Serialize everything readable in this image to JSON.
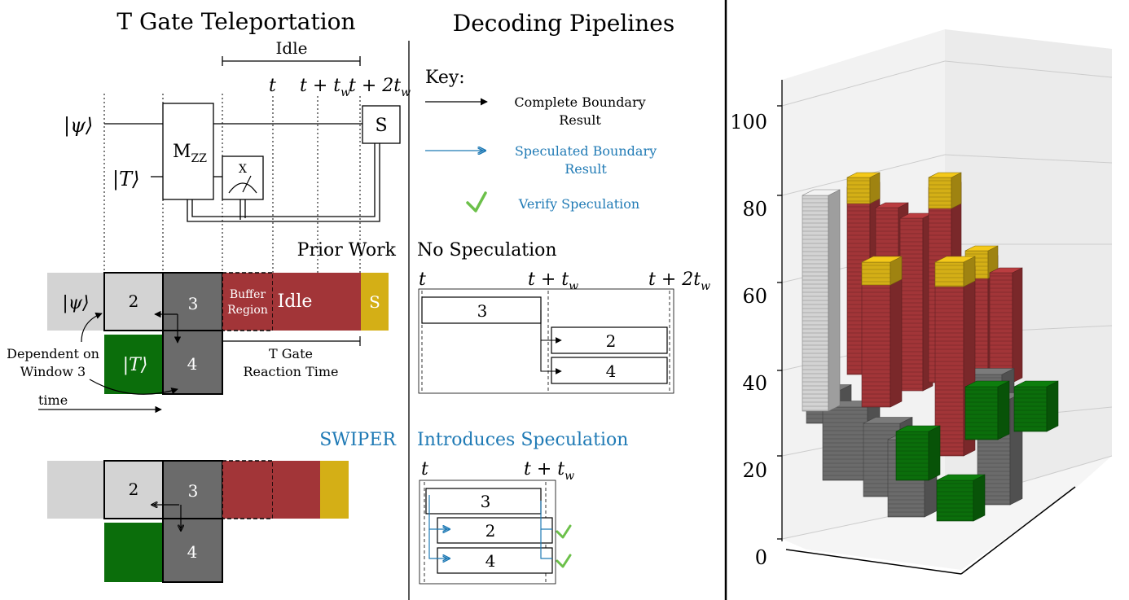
{
  "colors": {
    "light_gray": "#d3d3d3",
    "dark_gray": "#6b6b6b",
    "red": "#a23538",
    "yellow": "#d4af16",
    "green": "#0b6e0b",
    "blue": "#1f7ab5",
    "check": "#6cc04a"
  },
  "left": {
    "title": "T Gate Teleportation",
    "idle_label": "Idle",
    "t_labels": [
      "t",
      "t + t",
      "t + 2t"
    ],
    "t_sub": "w",
    "psi": "|ψ⟩",
    "T": "|T⟩",
    "mzz": "M",
    "mzz_sub": "ZZ",
    "meas": "X",
    "s_gate": "S",
    "prior_work": "Prior Work",
    "pw_blocks": {
      "psi": "|ψ⟩",
      "b2": "2",
      "b3": "3",
      "buffer1": "Buffer",
      "buffer2": "Region",
      "idle": "Idle",
      "s": "S",
      "T": "|T⟩",
      "b4": "4"
    },
    "dependent1": "Dependent on",
    "dependent2": "Window 3",
    "reaction1": "T Gate",
    "reaction2": "Reaction Time",
    "time": "time",
    "swiper": "SWIPER",
    "sw_blocks": {
      "b2": "2",
      "b3": "3",
      "b4": "4"
    }
  },
  "middle": {
    "title": "Decoding Pipelines",
    "key": "Key:",
    "key1a": "Complete Boundary",
    "key1b": "Result",
    "key2a": "Speculated Boundary",
    "key2b": "Result",
    "key3": "Verify Speculation",
    "no_spec": "No Speculation",
    "ns_ticks": [
      "t",
      "t + t",
      "t + 2t"
    ],
    "ns_boxes": [
      "3",
      "2",
      "4"
    ],
    "intro_spec": "Introduces Speculation",
    "is_ticks": [
      "t",
      "t + t"
    ],
    "is_boxes": [
      "3",
      "2",
      "4"
    ]
  },
  "right": {
    "z_ticks": [
      "100",
      "80",
      "60",
      "40",
      "20",
      "0"
    ]
  }
}
